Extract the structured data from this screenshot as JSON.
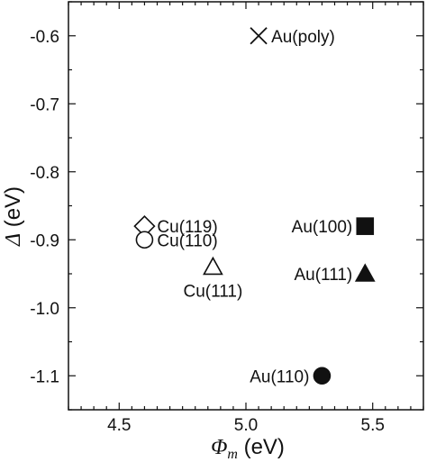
{
  "chart_data": {
    "type": "scatter",
    "xlabel": {
      "symbol": "Φ",
      "subscript": "m",
      "unit": " (eV)"
    },
    "ylabel": {
      "symbol": "Δ",
      "unit": " (eV)"
    },
    "xlim": [
      4.3,
      5.7
    ],
    "ylim": [
      -1.15,
      -0.55
    ],
    "xticks": [
      4.5,
      5.0,
      5.5
    ],
    "xtick_labels": [
      "4.5",
      "5.0",
      "5.5"
    ],
    "yticks": [
      -0.6,
      -0.7,
      -0.8,
      -0.9,
      -1.0,
      -1.1
    ],
    "ytick_labels": [
      "-0.6",
      "-0.7",
      "-0.8",
      "-0.9",
      "-1.0",
      "-1.1"
    ],
    "grid": false,
    "points": [
      {
        "label": "Au(poly)",
        "x": 5.05,
        "y": -0.6,
        "marker": "x",
        "filled": false,
        "label_side": "right"
      },
      {
        "label": "Cu(119)",
        "x": 4.6,
        "y": -0.88,
        "marker": "diamond",
        "filled": false,
        "label_side": "right"
      },
      {
        "label": "Cu(110)",
        "x": 4.6,
        "y": -0.9,
        "marker": "circle",
        "filled": false,
        "label_side": "right"
      },
      {
        "label": "Cu(111)",
        "x": 4.87,
        "y": -0.94,
        "marker": "triangle",
        "filled": false,
        "label_side": "below"
      },
      {
        "label": "Au(100)",
        "x": 5.47,
        "y": -0.88,
        "marker": "square",
        "filled": true,
        "label_side": "left"
      },
      {
        "label": "Au(111)",
        "x": 5.47,
        "y": -0.95,
        "marker": "triangle",
        "filled": true,
        "label_side": "left"
      },
      {
        "label": "Au(110)",
        "x": 5.3,
        "y": -1.1,
        "marker": "circle",
        "filled": true,
        "label_side": "left"
      }
    ]
  }
}
